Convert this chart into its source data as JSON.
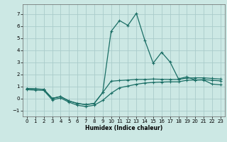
{
  "xlabel": "Humidex (Indice chaleur)",
  "background_color": "#cce8e4",
  "grid_color": "#aaccca",
  "line_color": "#1a6e65",
  "xlim": [
    -0.5,
    23.5
  ],
  "ylim": [
    -1.5,
    7.8
  ],
  "x_ticks": [
    0,
    1,
    2,
    3,
    4,
    5,
    6,
    7,
    8,
    9,
    10,
    11,
    12,
    13,
    14,
    15,
    16,
    17,
    18,
    19,
    20,
    21,
    22,
    23
  ],
  "y_ticks": [
    -1,
    0,
    1,
    2,
    3,
    4,
    5,
    6,
    7
  ],
  "x": [
    0,
    1,
    2,
    3,
    4,
    5,
    6,
    7,
    8,
    9,
    10,
    11,
    12,
    13,
    14,
    15,
    16,
    17,
    18,
    19,
    20,
    21,
    22,
    23
  ],
  "y_peak": [
    0.82,
    0.78,
    0.75,
    0.0,
    0.15,
    -0.22,
    -0.42,
    -0.52,
    -0.42,
    0.48,
    5.55,
    6.45,
    6.05,
    7.05,
    4.82,
    2.92,
    3.82,
    3.02,
    1.62,
    1.78,
    1.52,
    1.52,
    1.18,
    1.12
  ],
  "y_upper": [
    0.82,
    0.78,
    0.75,
    0.0,
    0.15,
    -0.22,
    -0.42,
    -0.52,
    -0.42,
    0.48,
    1.42,
    1.48,
    1.52,
    1.57,
    1.57,
    1.6,
    1.58,
    1.57,
    1.57,
    1.68,
    1.7,
    1.7,
    1.65,
    1.6
  ],
  "y_lower": [
    0.72,
    0.68,
    0.66,
    -0.12,
    0.03,
    -0.32,
    -0.57,
    -0.68,
    -0.57,
    -0.17,
    0.42,
    0.88,
    1.02,
    1.17,
    1.27,
    1.32,
    1.35,
    1.37,
    1.37,
    1.5,
    1.52,
    1.55,
    1.5,
    1.45
  ]
}
